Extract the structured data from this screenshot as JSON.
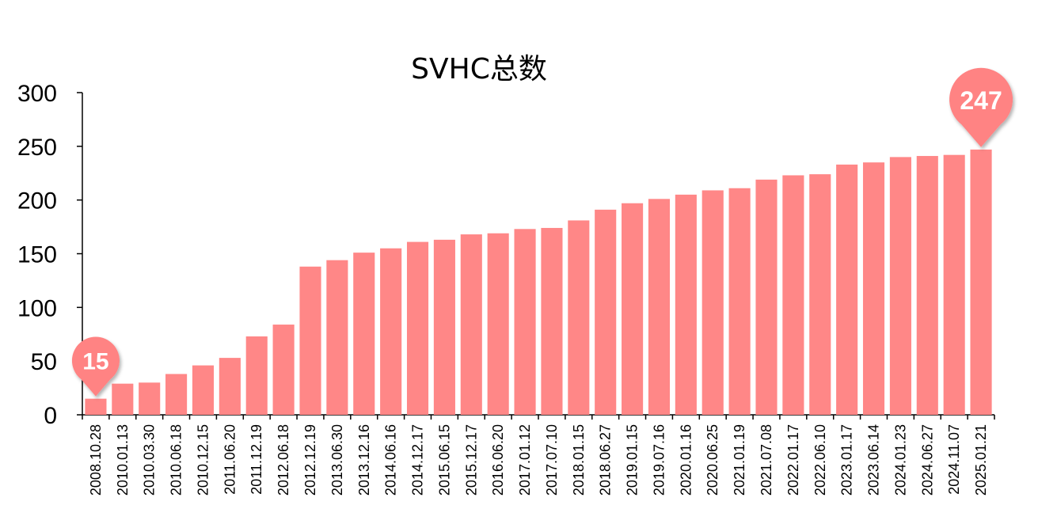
{
  "chart_data": {
    "type": "bar",
    "title": "SVHC总数",
    "xlabel": "",
    "ylabel": "",
    "ylim": [
      0,
      300
    ],
    "yticks": [
      0,
      50,
      100,
      150,
      200,
      250,
      300
    ],
    "grid": false,
    "legend": "none",
    "bar_color": "#ff8787",
    "categories": [
      "2008.10.28",
      "2010.01.13",
      "2010.03.30",
      "2010.06.18",
      "2010.12.15",
      "2011.06.20",
      "2011.12.19",
      "2012.06.18",
      "2012.12.19",
      "2013.06.30",
      "2013.12.16",
      "2014.06.16",
      "2014.12.17",
      "2015.06.15",
      "2015.12.17",
      "2016.06.20",
      "2017.01.12",
      "2017.07.10",
      "2018.01.15",
      "2018.06.27",
      "2019.01.15",
      "2019.07.16",
      "2020.01.16",
      "2020.06.25",
      "2021.01.19",
      "2021.07.08",
      "2022.01.17",
      "2022.06.10",
      "2023.01.17",
      "2023.06.14",
      "2024.01.23",
      "2024.06.27",
      "2024.11.07",
      "2025.01.21"
    ],
    "values": [
      15,
      29,
      30,
      38,
      46,
      53,
      73,
      84,
      138,
      144,
      151,
      155,
      161,
      163,
      168,
      169,
      173,
      174,
      181,
      191,
      197,
      201,
      205,
      209,
      211,
      219,
      223,
      224,
      233,
      235,
      240,
      241,
      242,
      247
    ],
    "annotations": [
      {
        "category": "2008.10.28",
        "value": 15,
        "label": "15"
      },
      {
        "category": "2025.01.21",
        "value": 247,
        "label": "247"
      }
    ]
  }
}
